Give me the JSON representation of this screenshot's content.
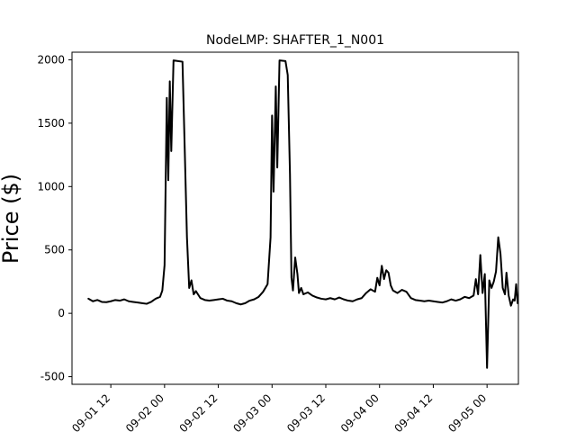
{
  "chart_data": {
    "type": "line",
    "title": "NodeLMP: SHAFTER_1_N001",
    "xlabel": "",
    "ylabel": "Price ($)",
    "x_axis_kind": "datetime",
    "xlim": [
      "2023-09-01 03:20",
      "2023-09-05 07:00"
    ],
    "ylim": [
      -560,
      2060
    ],
    "y_ticks": [
      -500,
      0,
      500,
      1000,
      1500,
      2000
    ],
    "x_ticks": [
      "2023-09-01 12:00",
      "2023-09-02 00:00",
      "2023-09-02 12:00",
      "2023-09-03 00:00",
      "2023-09-03 12:00",
      "2023-09-04 00:00",
      "2023-09-04 12:00",
      "2023-09-05 00:00"
    ],
    "x_tick_labels": [
      "09-01 12",
      "09-02 00",
      "09-02 12",
      "09-03 00",
      "09-03 12",
      "09-04 00",
      "09-04 12",
      "09-05 00"
    ],
    "grid": false,
    "legend": "none",
    "series": [
      {
        "color": "#000000",
        "points": [
          [
            "2023-09-01 07:00",
            115
          ],
          [
            "2023-09-01 08:00",
            95
          ],
          [
            "2023-09-01 09:00",
            105
          ],
          [
            "2023-09-01 10:00",
            90
          ],
          [
            "2023-09-01 11:00",
            88
          ],
          [
            "2023-09-01 12:00",
            95
          ],
          [
            "2023-09-01 13:00",
            105
          ],
          [
            "2023-09-01 14:00",
            100
          ],
          [
            "2023-09-01 15:00",
            110
          ],
          [
            "2023-09-01 16:00",
            95
          ],
          [
            "2023-09-01 17:00",
            90
          ],
          [
            "2023-09-01 18:00",
            85
          ],
          [
            "2023-09-01 19:00",
            80
          ],
          [
            "2023-09-01 20:00",
            75
          ],
          [
            "2023-09-01 21:00",
            90
          ],
          [
            "2023-09-01 22:00",
            115
          ],
          [
            "2023-09-01 23:00",
            130
          ],
          [
            "2023-09-01 23:30",
            180
          ],
          [
            "2023-09-02 00:00",
            380
          ],
          [
            "2023-09-02 00:30",
            1700
          ],
          [
            "2023-09-02 00:50",
            1050
          ],
          [
            "2023-09-02 01:10",
            1830
          ],
          [
            "2023-09-02 01:30",
            1280
          ],
          [
            "2023-09-02 02:00",
            1995
          ],
          [
            "2023-09-02 03:00",
            1990
          ],
          [
            "2023-09-02 04:00",
            1985
          ],
          [
            "2023-09-02 04:30",
            1300
          ],
          [
            "2023-09-02 05:00",
            600
          ],
          [
            "2023-09-02 05:30",
            200
          ],
          [
            "2023-09-02 06:00",
            260
          ],
          [
            "2023-09-02 06:30",
            150
          ],
          [
            "2023-09-02 07:00",
            175
          ],
          [
            "2023-09-02 08:00",
            120
          ],
          [
            "2023-09-02 09:00",
            105
          ],
          [
            "2023-09-02 10:00",
            100
          ],
          [
            "2023-09-02 11:00",
            105
          ],
          [
            "2023-09-02 12:00",
            110
          ],
          [
            "2023-09-02 13:00",
            115
          ],
          [
            "2023-09-02 14:00",
            100
          ],
          [
            "2023-09-02 15:00",
            95
          ],
          [
            "2023-09-02 16:00",
            80
          ],
          [
            "2023-09-02 17:00",
            70
          ],
          [
            "2023-09-02 18:00",
            80
          ],
          [
            "2023-09-02 19:00",
            100
          ],
          [
            "2023-09-02 20:00",
            110
          ],
          [
            "2023-09-02 21:00",
            130
          ],
          [
            "2023-09-02 22:00",
            170
          ],
          [
            "2023-09-02 23:00",
            230
          ],
          [
            "2023-09-02 23:40",
            600
          ],
          [
            "2023-09-03 00:00",
            1560
          ],
          [
            "2023-09-03 00:20",
            960
          ],
          [
            "2023-09-03 00:50",
            1790
          ],
          [
            "2023-09-03 01:10",
            1150
          ],
          [
            "2023-09-03 01:40",
            1995
          ],
          [
            "2023-09-03 03:00",
            1990
          ],
          [
            "2023-09-03 03:30",
            1880
          ],
          [
            "2023-09-03 04:00",
            1100
          ],
          [
            "2023-09-03 04:20",
            280
          ],
          [
            "2023-09-03 04:40",
            180
          ],
          [
            "2023-09-03 05:10",
            440
          ],
          [
            "2023-09-03 05:40",
            310
          ],
          [
            "2023-09-03 06:00",
            160
          ],
          [
            "2023-09-03 06:30",
            200
          ],
          [
            "2023-09-03 07:00",
            150
          ],
          [
            "2023-09-03 08:00",
            165
          ],
          [
            "2023-09-03 09:00",
            140
          ],
          [
            "2023-09-03 10:00",
            125
          ],
          [
            "2023-09-03 11:00",
            115
          ],
          [
            "2023-09-03 12:00",
            110
          ],
          [
            "2023-09-03 13:00",
            120
          ],
          [
            "2023-09-03 14:00",
            110
          ],
          [
            "2023-09-03 15:00",
            125
          ],
          [
            "2023-09-03 16:00",
            110
          ],
          [
            "2023-09-03 17:00",
            100
          ],
          [
            "2023-09-03 18:00",
            95
          ],
          [
            "2023-09-03 19:00",
            110
          ],
          [
            "2023-09-03 20:00",
            120
          ],
          [
            "2023-09-03 21:00",
            160
          ],
          [
            "2023-09-03 22:00",
            190
          ],
          [
            "2023-09-03 23:00",
            170
          ],
          [
            "2023-09-03 23:30",
            280
          ],
          [
            "2023-09-04 00:00",
            220
          ],
          [
            "2023-09-04 00:30",
            375
          ],
          [
            "2023-09-04 01:00",
            270
          ],
          [
            "2023-09-04 01:30",
            340
          ],
          [
            "2023-09-04 02:00",
            320
          ],
          [
            "2023-09-04 02:30",
            220
          ],
          [
            "2023-09-04 03:00",
            180
          ],
          [
            "2023-09-04 04:00",
            160
          ],
          [
            "2023-09-04 05:00",
            185
          ],
          [
            "2023-09-04 06:00",
            170
          ],
          [
            "2023-09-04 07:00",
            120
          ],
          [
            "2023-09-04 08:00",
            105
          ],
          [
            "2023-09-04 09:00",
            100
          ],
          [
            "2023-09-04 10:00",
            95
          ],
          [
            "2023-09-04 11:00",
            100
          ],
          [
            "2023-09-04 12:00",
            95
          ],
          [
            "2023-09-04 13:00",
            90
          ],
          [
            "2023-09-04 14:00",
            85
          ],
          [
            "2023-09-04 15:00",
            95
          ],
          [
            "2023-09-04 16:00",
            110
          ],
          [
            "2023-09-04 17:00",
            100
          ],
          [
            "2023-09-04 18:00",
            110
          ],
          [
            "2023-09-04 19:00",
            130
          ],
          [
            "2023-09-04 20:00",
            120
          ],
          [
            "2023-09-04 21:00",
            140
          ],
          [
            "2023-09-04 21:30",
            270
          ],
          [
            "2023-09-04 22:00",
            150
          ],
          [
            "2023-09-04 22:30",
            460
          ],
          [
            "2023-09-04 23:00",
            160
          ],
          [
            "2023-09-04 23:30",
            310
          ],
          [
            "2023-09-05 00:00",
            -430
          ],
          [
            "2023-09-05 00:30",
            260
          ],
          [
            "2023-09-05 01:00",
            200
          ],
          [
            "2023-09-05 01:30",
            250
          ],
          [
            "2023-09-05 02:00",
            330
          ],
          [
            "2023-09-05 02:30",
            600
          ],
          [
            "2023-09-05 03:00",
            470
          ],
          [
            "2023-09-05 03:30",
            200
          ],
          [
            "2023-09-05 04:00",
            150
          ],
          [
            "2023-09-05 04:20",
            320
          ],
          [
            "2023-09-05 04:50",
            140
          ],
          [
            "2023-09-05 05:20",
            60
          ],
          [
            "2023-09-05 05:50",
            110
          ],
          [
            "2023-09-05 06:10",
            100
          ],
          [
            "2023-09-05 06:30",
            230
          ],
          [
            "2023-09-05 06:50",
            80
          ]
        ]
      }
    ]
  }
}
